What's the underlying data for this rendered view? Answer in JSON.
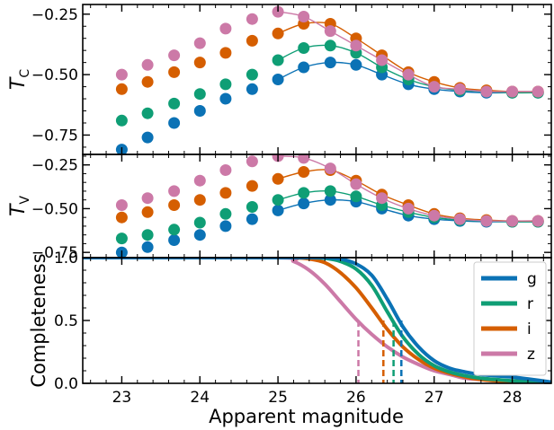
{
  "chart_data": {
    "type": "scatter",
    "xlabel": "Apparent magnitude",
    "xlim": [
      22.5,
      28.5
    ],
    "x_ticks": [
      "23",
      "24",
      "25",
      "26",
      "27",
      "28"
    ],
    "colors": {
      "g": "#0b72b5",
      "r": "#0f9e75",
      "i": "#d55e00",
      "z": "#cc79a7"
    },
    "panels": [
      {
        "id": "tc",
        "ylabel_main": "T",
        "ylabel_sub": "C",
        "ylim": [
          -0.83,
          -0.21
        ],
        "y_ticks": [
          -0.25,
          -0.5,
          -0.75
        ],
        "y_tick_labels": [
          "−0.25",
          "−0.50",
          "−0.75"
        ],
        "x_points": [
          23.0,
          23.33,
          23.67,
          24.0,
          24.33,
          24.67,
          25.0,
          25.33,
          25.67,
          26.0,
          26.33,
          26.67,
          27.0,
          27.33,
          27.67,
          28.0,
          28.33
        ],
        "series": [
          {
            "name": "g",
            "values": [
              -0.81,
              -0.76,
              -0.7,
              -0.65,
              -0.6,
              -0.56,
              -0.52,
              -0.47,
              -0.45,
              -0.46,
              -0.5,
              -0.54,
              -0.56,
              -0.57,
              -0.575,
              -0.575,
              -0.575
            ]
          },
          {
            "name": "r",
            "values": [
              -0.69,
              -0.66,
              -0.62,
              -0.58,
              -0.54,
              -0.5,
              -0.44,
              -0.39,
              -0.38,
              -0.41,
              -0.47,
              -0.52,
              -0.55,
              -0.565,
              -0.57,
              -0.575,
              -0.575
            ]
          },
          {
            "name": "i",
            "values": [
              -0.56,
              -0.53,
              -0.49,
              -0.45,
              -0.41,
              -0.36,
              -0.33,
              -0.29,
              -0.29,
              -0.35,
              -0.42,
              -0.49,
              -0.53,
              -0.555,
              -0.565,
              -0.57,
              -0.57
            ]
          },
          {
            "name": "z",
            "values": [
              -0.5,
              -0.46,
              -0.42,
              -0.37,
              -0.31,
              -0.27,
              -0.24,
              -0.26,
              -0.32,
              -0.38,
              -0.44,
              -0.5,
              -0.55,
              -0.56,
              -0.57,
              -0.57,
              -0.57
            ]
          }
        ]
      },
      {
        "id": "tv",
        "ylabel_main": "T",
        "ylabel_sub": "V",
        "ylim": [
          -0.78,
          -0.19
        ],
        "y_ticks": [
          -0.25,
          -0.5,
          -0.75
        ],
        "y_tick_labels": [
          "−0.25",
          "−0.50",
          "−0.75"
        ],
        "x_points": [
          23.0,
          23.33,
          23.67,
          24.0,
          24.33,
          24.67,
          25.0,
          25.33,
          25.67,
          26.0,
          26.33,
          26.67,
          27.0,
          27.33,
          27.67,
          28.0,
          28.33
        ],
        "series": [
          {
            "name": "g",
            "values": [
              -0.75,
              -0.72,
              -0.68,
              -0.65,
              -0.6,
              -0.56,
              -0.51,
              -0.47,
              -0.45,
              -0.46,
              -0.5,
              -0.54,
              -0.56,
              -0.57,
              -0.575,
              -0.575,
              -0.575
            ]
          },
          {
            "name": "r",
            "values": [
              -0.67,
              -0.65,
              -0.62,
              -0.58,
              -0.53,
              -0.49,
              -0.45,
              -0.41,
              -0.4,
              -0.43,
              -0.48,
              -0.52,
              -0.55,
              -0.565,
              -0.57,
              -0.575,
              -0.575
            ]
          },
          {
            "name": "i",
            "values": [
              -0.55,
              -0.52,
              -0.48,
              -0.45,
              -0.41,
              -0.37,
              -0.33,
              -0.29,
              -0.28,
              -0.34,
              -0.42,
              -0.48,
              -0.53,
              -0.555,
              -0.565,
              -0.57,
              -0.57
            ]
          },
          {
            "name": "z",
            "values": [
              -0.48,
              -0.44,
              -0.4,
              -0.34,
              -0.28,
              -0.23,
              -0.2,
              -0.21,
              -0.27,
              -0.36,
              -0.44,
              -0.5,
              -0.54,
              -0.56,
              -0.57,
              -0.57,
              -0.57
            ]
          }
        ]
      },
      {
        "id": "completeness",
        "ylabel": "Completeness",
        "ylim": [
          0.0,
          1.0
        ],
        "y_ticks": [
          0.0,
          0.5,
          1.0
        ],
        "y_tick_labels": [
          "0.0",
          "0.5",
          "1.0"
        ],
        "x_points": [
          22.5,
          25.0,
          25.2,
          25.4,
          25.6,
          25.8,
          26.0,
          26.2,
          26.4,
          26.6,
          26.8,
          27.0,
          27.2,
          27.4,
          27.6,
          27.8,
          28.0,
          28.2,
          28.5
        ],
        "series": [
          {
            "name": "g",
            "values": [
              1.0,
              1.0,
              1.0,
              1.0,
              1.0,
              0.99,
              0.95,
              0.86,
              0.67,
              0.45,
              0.29,
              0.18,
              0.12,
              0.09,
              0.07,
              0.06,
              0.05,
              0.035,
              0.01
            ]
          },
          {
            "name": "r",
            "values": [
              1.0,
              1.0,
              1.0,
              1.0,
              0.995,
              0.97,
              0.91,
              0.78,
              0.57,
              0.37,
              0.23,
              0.14,
              0.09,
              0.06,
              0.04,
              0.03,
              0.02,
              0.015,
              0.01
            ]
          },
          {
            "name": "i",
            "values": [
              1.0,
              1.0,
              1.0,
              0.99,
              0.96,
              0.88,
              0.76,
              0.6,
              0.43,
              0.29,
              0.19,
              0.12,
              0.08,
              0.05,
              0.03,
              0.02,
              0.01,
              0.005,
              0.0
            ]
          },
          {
            "name": "z",
            "values": [
              1.0,
              1.0,
              0.97,
              0.9,
              0.79,
              0.65,
              0.51,
              0.39,
              0.29,
              0.21,
              0.15,
              0.1,
              0.07,
              0.04,
              0.03,
              0.02,
              0.01,
              0.005,
              0.0
            ]
          }
        ],
        "half_completeness_mag": {
          "g": 26.58,
          "r": 26.48,
          "i": 26.35,
          "z": 26.03
        }
      }
    ],
    "legend": {
      "position": "right",
      "entries": [
        "g",
        "r",
        "i",
        "z"
      ]
    }
  }
}
